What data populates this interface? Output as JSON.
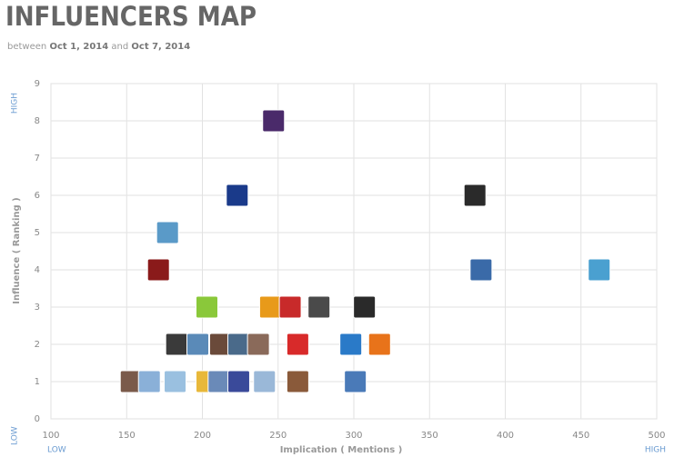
{
  "chart_data": {
    "type": "scatter",
    "title": "INFLUENCERS MAP",
    "subtitle": {
      "prefix": "between",
      "start": "Oct 1, 2014",
      "joiner": "and",
      "end": "Oct 7, 2014"
    },
    "x_label": "Implication ( Mentions )",
    "y_label": "Influence ( Ranking )",
    "x_low_label": "LOW",
    "x_high_label": "HIGH",
    "y_low_label": "LOW",
    "y_high_label": "HIGH",
    "x": [
      247,
      223,
      380,
      177,
      171,
      384,
      462,
      203,
      245,
      258,
      277,
      307,
      183,
      197,
      212,
      224,
      237,
      263,
      298,
      317,
      153,
      165,
      182,
      203,
      211,
      224,
      241,
      263,
      301
    ],
    "values": [
      8,
      6,
      6,
      5,
      4,
      4,
      4,
      3,
      3,
      3,
      3,
      3,
      2,
      2,
      2,
      2,
      2,
      2,
      2,
      2,
      1,
      1,
      1,
      1,
      1,
      1,
      1,
      1,
      1
    ],
    "colors": [
      "#4a2a6a",
      "#1a3a8a",
      "#2a2a2a",
      "#5a9ac8",
      "#8a1a1a",
      "#3a6aa8",
      "#4aa0d0",
      "#8ac83a",
      "#e89a1a",
      "#c82a2a",
      "#4a4a4a",
      "#2a2a2a",
      "#3a3a3a",
      "#5a8ab8",
      "#6a4a3a",
      "#4a6a8a",
      "#8a6a5a",
      "#d82a2a",
      "#2a7ac8",
      "#e8731a",
      "#7a5a4a",
      "#8ab0d8",
      "#9ac0e0",
      "#e8b83a",
      "#6a8ab8",
      "#3a4a9a",
      "#9ab8d8",
      "#8a5a3a",
      "#4a7ab8"
    ],
    "xlim": [
      100,
      500
    ],
    "xticks": [
      100,
      150,
      200,
      250,
      300,
      350,
      400,
      450,
      500
    ],
    "ylim": [
      0,
      9
    ],
    "yticks": [
      0,
      1,
      2,
      3,
      4,
      5,
      6,
      7,
      8,
      9
    ],
    "grid": true
  }
}
